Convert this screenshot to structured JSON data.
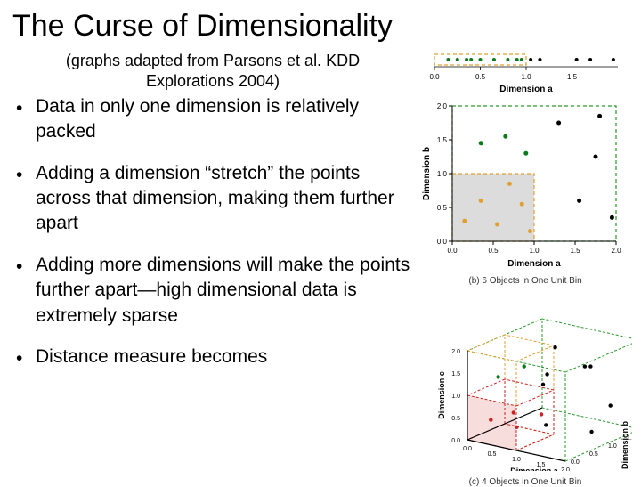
{
  "title": "The Curse of Dimensionality",
  "subtitle_line1": "(graphs adapted from Parsons et al. KDD",
  "subtitle_line2": "Explorations 2004)",
  "bullets": {
    "b1": "Data in only one dimension is relatively packed",
    "b2": "Adding a dimension “stretch” the points across that dimension, making them further apart",
    "b3": "Adding more dimensions will make the points further apart—high dimensional data is extremely sparse",
    "b4": "Distance measure becomes"
  },
  "fig1d": {
    "xlabel": "Dimension a",
    "x_ticks": [
      "0.0",
      "0.5",
      "1.0",
      "1.5"
    ],
    "xlim": [
      0.0,
      2.0
    ],
    "box_color": "#e0a030",
    "box_dash": "4,3",
    "box_range": [
      0.0,
      1.0
    ],
    "green_points": [
      0.15,
      0.25,
      0.35,
      0.4,
      0.5,
      0.65,
      0.8,
      0.9,
      0.95
    ],
    "green_color": "#0a7a1a",
    "black_points": [
      1.05,
      1.15,
      1.55,
      1.7,
      1.95
    ],
    "black_color": "#000000",
    "point_radius": 2
  },
  "fig2d": {
    "caption": "(b) 6 Objects in One Unit Bin",
    "xlabel": "Dimension a",
    "ylabel": "Dimension b",
    "xlim": [
      0.0,
      2.0
    ],
    "ylim": [
      0.0,
      2.0
    ],
    "x_ticks": [
      "0.0",
      "0.5",
      "1.0",
      "1.5",
      "2.0"
    ],
    "y_ticks": [
      "0.0",
      "0.5",
      "1.0",
      "1.5",
      "2.0"
    ],
    "box_fill": "#dcdcdc",
    "box_stroke": "#e0a030",
    "box_dash": "4,3",
    "box_rect": [
      0.0,
      0.0,
      1.0,
      1.0
    ],
    "outer_box_stroke": "#2a9a2a",
    "outer_box_dash": "4,3",
    "outer_box_rect": [
      0.0,
      0.0,
      2.0,
      2.0
    ],
    "orange_points": [
      [
        0.15,
        0.3
      ],
      [
        0.35,
        0.6
      ],
      [
        0.55,
        0.25
      ],
      [
        0.7,
        0.85
      ],
      [
        0.85,
        0.55
      ],
      [
        0.95,
        0.15
      ]
    ],
    "orange_color": "#e0a030",
    "green_points": [
      [
        0.35,
        1.45
      ],
      [
        0.65,
        1.55
      ],
      [
        0.9,
        1.3
      ]
    ],
    "green_color": "#0a7a1a",
    "black_points": [
      [
        1.3,
        1.75
      ],
      [
        1.55,
        0.6
      ],
      [
        1.75,
        1.25
      ],
      [
        1.8,
        1.85
      ],
      [
        1.95,
        0.35
      ]
    ],
    "black_color": "#000000",
    "point_radius": 2.5
  },
  "fig3d": {
    "caption": "(c) 4 Objects in One Unit Bin",
    "xlabel": "Dimension a",
    "ylabel": "Dimension b",
    "zlabel": "Dimension c",
    "ticks": [
      "0.0",
      "0.5",
      "1.0",
      "1.5",
      "2.0"
    ],
    "red_stroke": "#cc2222",
    "red_dash": "3,2",
    "orange_stroke": "#e0a030",
    "orange_dash": "3,2",
    "green_stroke": "#2a9a2a",
    "green_dash": "3,2",
    "red_fill": "#f4c6c6",
    "red_points": [
      [
        0.25,
        0.3,
        0.4
      ],
      [
        0.55,
        0.6,
        0.2
      ],
      [
        0.75,
        0.25,
        0.7
      ],
      [
        0.9,
        0.8,
        0.5
      ]
    ],
    "red_pt_color": "#cc2222",
    "green_points": [
      [
        0.4,
        0.3,
        1.4
      ],
      [
        0.7,
        0.6,
        1.6
      ]
    ],
    "green_pt_color": "#0a7a1a",
    "black_points": [
      [
        1.3,
        0.4,
        0.5
      ],
      [
        1.6,
        1.2,
        1.6
      ],
      [
        1.85,
        0.9,
        0.3
      ],
      [
        0.4,
        1.5,
        0.8
      ],
      [
        1.1,
        1.7,
        1.3
      ],
      [
        1.7,
        1.6,
        0.6
      ],
      [
        0.8,
        1.3,
        1.8
      ],
      [
        1.4,
        0.3,
        1.7
      ]
    ],
    "black_pt_color": "#000000",
    "point_radius": 2.2
  }
}
